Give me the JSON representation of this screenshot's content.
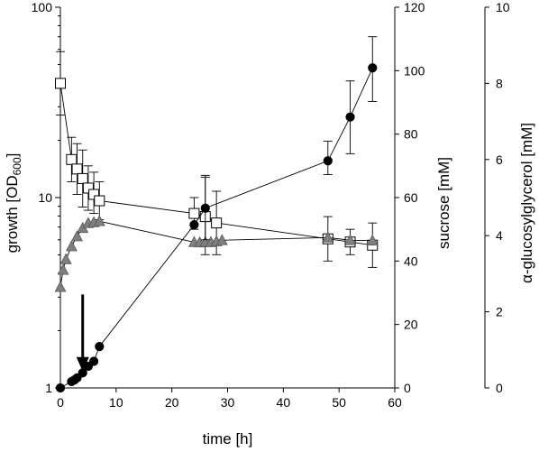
{
  "chart_data": {
    "type": "scatter",
    "x_axis": {
      "label": "time [h]",
      "range": [
        0,
        60
      ],
      "ticks": [
        0,
        10,
        20,
        30,
        40,
        50,
        60
      ]
    },
    "y_axes": {
      "growth": {
        "label_main": "growth [OD",
        "label_sub": "600",
        "label_end": "]",
        "scale": "log",
        "range": [
          1,
          100
        ],
        "ticks": [
          1,
          10,
          100
        ],
        "tick_labels": [
          "1",
          "10",
          "100"
        ]
      },
      "sucrose": {
        "label": "sucrose [mM]",
        "scale": "linear",
        "range": [
          0,
          120
        ],
        "ticks": [
          0,
          20,
          40,
          60,
          80,
          100,
          120
        ],
        "tick_labels": [
          "0",
          "20",
          "40",
          "60",
          "80",
          "100",
          "120"
        ]
      },
      "glucosylglycerol": {
        "label": "α-glucosylglycerol [mM]",
        "scale": "linear",
        "range": [
          0,
          10
        ],
        "ticks": [
          0,
          2,
          4,
          6,
          8,
          10
        ],
        "tick_labels": [
          "0",
          "2",
          "4",
          "6",
          "8",
          "10"
        ]
      }
    },
    "series": [
      {
        "axis": "growth",
        "marker": "filled-circle",
        "points": [
          {
            "x": 0,
            "y": 1.0
          },
          {
            "x": 2,
            "y": 1.08
          },
          {
            "x": 2.5,
            "y": 1.1
          },
          {
            "x": 3,
            "y": 1.13
          },
          {
            "x": 4,
            "y": 1.2
          },
          {
            "x": 5,
            "y": 1.3
          },
          {
            "x": 6,
            "y": 1.38
          },
          {
            "x": 7,
            "y": 1.65
          },
          {
            "x": 24,
            "y": 7.2
          },
          {
            "x": 26,
            "y": 8.8,
            "err": [
              6.0,
              12.8
            ]
          },
          {
            "x": 48,
            "y": 15.6,
            "err": [
              13.2,
              19.8
            ]
          },
          {
            "x": 52,
            "y": 26.5,
            "err": [
              17.0,
              41.0
            ]
          },
          {
            "x": 56,
            "y": 48.0,
            "err": [
              32.0,
              70.0
            ]
          }
        ]
      },
      {
        "axis": "sucrose",
        "marker": "open-square",
        "points": [
          {
            "x": 0,
            "y": 96,
            "err": [
              86,
              106
            ]
          },
          {
            "x": 2,
            "y": 72,
            "err": [
              65,
              79
            ]
          },
          {
            "x": 3,
            "y": 69,
            "err": [
              61,
              77
            ]
          },
          {
            "x": 4,
            "y": 66,
            "err": [
              57,
              75
            ]
          },
          {
            "x": 5,
            "y": 63,
            "err": [
              56,
              70
            ]
          },
          {
            "x": 6,
            "y": 61,
            "err": [
              55,
              68
            ]
          },
          {
            "x": 7,
            "y": 59,
            "err": [
              53,
              65
            ]
          },
          {
            "x": 24,
            "y": 55,
            "err": [
              50,
              60
            ]
          },
          {
            "x": 26,
            "y": 54,
            "err": [
              42,
              67
            ]
          },
          {
            "x": 28,
            "y": 52,
            "err": [
              42,
              62
            ]
          },
          {
            "x": 48,
            "y": 47,
            "err": [
              40,
              54
            ]
          },
          {
            "x": 52,
            "y": 46,
            "err": [
              42,
              50
            ]
          },
          {
            "x": 56,
            "y": 45,
            "err": [
              38,
              52
            ]
          }
        ]
      },
      {
        "axis": "glucosylglycerol",
        "marker": "filled-triangle",
        "points": [
          {
            "x": 0,
            "y": 2.65
          },
          {
            "x": 0.5,
            "y": 3.1
          },
          {
            "x": 1,
            "y": 3.38
          },
          {
            "x": 2,
            "y": 3.72
          },
          {
            "x": 3,
            "y": 3.98
          },
          {
            "x": 4,
            "y": 4.2
          },
          {
            "x": 5,
            "y": 4.33
          },
          {
            "x": 6,
            "y": 4.35
          },
          {
            "x": 7,
            "y": 4.38
          },
          {
            "x": 24,
            "y": 3.83
          },
          {
            "x": 25,
            "y": 3.82
          },
          {
            "x": 26,
            "y": 3.83
          },
          {
            "x": 27,
            "y": 3.83
          },
          {
            "x": 28,
            "y": 3.85
          },
          {
            "x": 29,
            "y": 3.88
          },
          {
            "x": 48,
            "y": 3.95
          },
          {
            "x": 52,
            "y": 3.88
          },
          {
            "x": 56,
            "y": 3.87
          }
        ]
      }
    ],
    "annotation": {
      "type": "arrow",
      "x": 4,
      "y_top_growth": 3.1,
      "y_tip_growth": 1.22
    }
  }
}
